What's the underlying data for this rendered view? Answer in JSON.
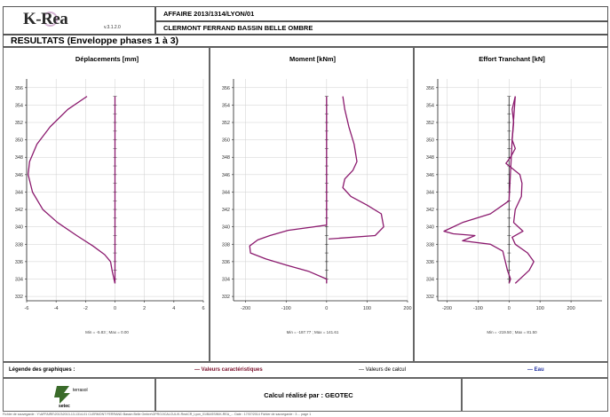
{
  "header": {
    "app_name": "K-Rea",
    "version": "v.3.1.2.0",
    "affaire": "AFFAIRE 2013/1314/LYON/01",
    "project": "CLERMONT FERRAND BASSIN BELLE OMBRE",
    "results_title": "RESULTATS (Enveloppe phases 1 à 3)"
  },
  "colors": {
    "envelope": "#8b1a6e",
    "axis": "#222222",
    "grid": "#cfcfcf",
    "legend_env": "#7a0f2a",
    "legend_water": "#2030a0"
  },
  "chart_data": [
    {
      "type": "line",
      "title": "Déplacements [mm]",
      "xlim": [
        -6,
        6
      ],
      "x_ticks": [
        "-6",
        "-4",
        "-2",
        "0",
        "2",
        "4",
        "6"
      ],
      "ylim": [
        331.5,
        357
      ],
      "y_ticks": [
        "356",
        "354",
        "352",
        "350",
        "348",
        "346",
        "344",
        "342",
        "340",
        "338",
        "336",
        "334",
        "332"
      ],
      "series": [
        {
          "x": [
            -1.9,
            -3.2,
            -4.4,
            -5.3,
            -5.8,
            -5.9,
            -5.6,
            -4.9,
            -3.9,
            -2.6,
            -1.5,
            -0.7,
            -0.3,
            -0.2,
            0
          ],
          "y": [
            355,
            353.5,
            351.5,
            349.5,
            347.5,
            346,
            344,
            342,
            340.5,
            339,
            337.8,
            336.8,
            336,
            335,
            333.5
          ]
        },
        {
          "x": [
            0,
            0
          ],
          "y": [
            333.5,
            355
          ]
        }
      ],
      "footer": "Min = -5.83 ; Max = 0.00"
    },
    {
      "type": "line",
      "title": "Moment [kNm]",
      "xlim": [
        -230,
        200
      ],
      "x_ticks": [
        "-200",
        "-100",
        "0",
        "100",
        "200"
      ],
      "ylim": [
        331.5,
        357
      ],
      "y_ticks": [
        "356",
        "354",
        "352",
        "350",
        "348",
        "346",
        "344",
        "342",
        "340",
        "338",
        "336",
        "334",
        "332"
      ],
      "series": [
        {
          "x": [
            40,
            45,
            55,
            68,
            75,
            65,
            45,
            40,
            60,
            100,
            135,
            141,
            120,
            5
          ],
          "y": [
            355,
            353.5,
            351.5,
            349.5,
            347.5,
            346.5,
            345.5,
            344.5,
            343.5,
            342.5,
            341.5,
            340,
            339,
            338.6
          ]
        },
        {
          "x": [
            0,
            0,
            -95,
            -140,
            -170,
            -190,
            -188,
            -150,
            -100,
            -45,
            0,
            0
          ],
          "y": [
            355,
            340.2,
            339.6,
            339,
            338.5,
            337.8,
            337,
            336.3,
            335.6,
            334.9,
            334,
            333.5
          ]
        }
      ],
      "footer": "Min = -187.77 ; Max = 141.61"
    },
    {
      "type": "line",
      "title": "Effort Tranchant [kN]",
      "xlim": [
        -230,
        300
      ],
      "x_ticks": [
        "-200",
        "-100",
        "0",
        "100",
        "200"
      ],
      "ylim": [
        331.5,
        357
      ],
      "y_ticks": [
        "356",
        "354",
        "352",
        "350",
        "348",
        "346",
        "344",
        "342",
        "340",
        "338",
        "336",
        "334",
        "332"
      ],
      "series": [
        {
          "x": [
            20,
            10,
            15,
            10,
            20,
            5,
            -10,
            35,
            42,
            40,
            20,
            15,
            45,
            10,
            20,
            60,
            80,
            65,
            20
          ],
          "y": [
            355,
            353.5,
            352,
            350,
            349,
            348,
            347.3,
            346,
            345,
            343.5,
            342,
            340.5,
            339.5,
            338.8,
            338,
            337,
            336,
            335,
            333.5
          ]
        },
        {
          "x": [
            20,
            10,
            0,
            -60,
            -150,
            -210,
            -180,
            -110,
            -150,
            -60,
            -20,
            -5,
            5,
            0
          ],
          "y": [
            355,
            350,
            343,
            341.5,
            340.5,
            339.5,
            339.2,
            339,
            338.4,
            338,
            337.2,
            335,
            334,
            333.5
          ]
        }
      ],
      "footer": "Min = -219.50 ; Max = 81.50"
    }
  ],
  "legend": {
    "title": "Légende des graphiques :",
    "envelope_label": "— Valeurs caractéristiques",
    "calc_label": "— Valeurs de calcul",
    "water_label": "— Eau"
  },
  "footer": {
    "company": "terrasol",
    "group": "setec",
    "computed_by": "Calcul réalisé par : GEOTEC",
    "file_path": "Fichier de sauvegarde : Y:\\AFFAIRE\\2013\\2013-13-1314-01 CLERMONT FERRAND Bassin Belle Ombre\\GPROJ\\CALCUL\\K-Rea\\CR_Lyon_01\\BASSIN\\K-REA_...  Date : 17/07/2014  Fichier de sauvegarde : 3  ...  page 1"
  }
}
